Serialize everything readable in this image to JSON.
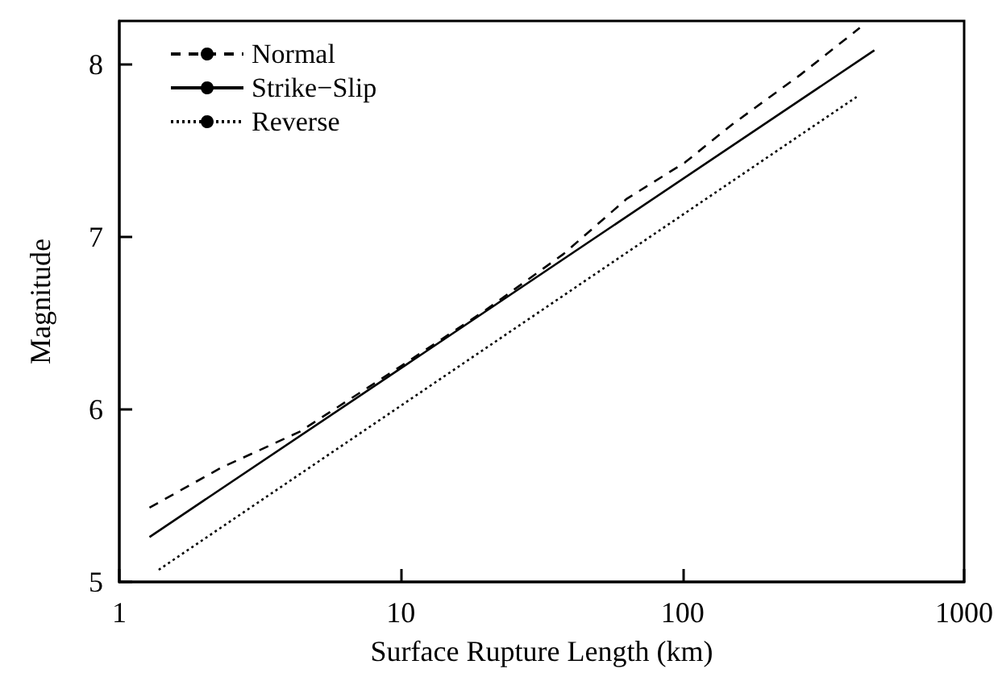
{
  "chart_data": {
    "type": "line",
    "xlabel": "Surface Rupture Length (km)",
    "ylabel": "Magnitude",
    "log": "x",
    "xlim": [
      1,
      1000
    ],
    "xticks": [
      1,
      10,
      100,
      1000
    ],
    "ylim": [
      5,
      8.25
    ],
    "yticks": [
      5,
      6,
      7,
      8
    ],
    "grid": false,
    "legend": "top left",
    "marker": "none",
    "series": [
      {
        "name": "Normal",
        "color": "#000000",
        "line_style": "dashed",
        "x": [
          1.28,
          2.29,
          4.37,
          10,
          19.8,
          37.8,
          63.4,
          102,
          150,
          263,
          426
        ],
        "values": [
          5.43,
          5.66,
          5.87,
          6.25,
          6.57,
          6.9,
          7.22,
          7.43,
          7.65,
          7.94,
          8.21
        ]
      },
      {
        "name": "Strike−Slip",
        "color": "#000000",
        "line_style": "solid",
        "x": [
          1.28,
          480
        ],
        "values": [
          5.26,
          8.08
        ]
      },
      {
        "name": "Reverse",
        "color": "#000000",
        "line_style": "dotted",
        "x": [
          1.38,
          415
        ],
        "values": [
          5.07,
          7.81
        ]
      }
    ]
  }
}
